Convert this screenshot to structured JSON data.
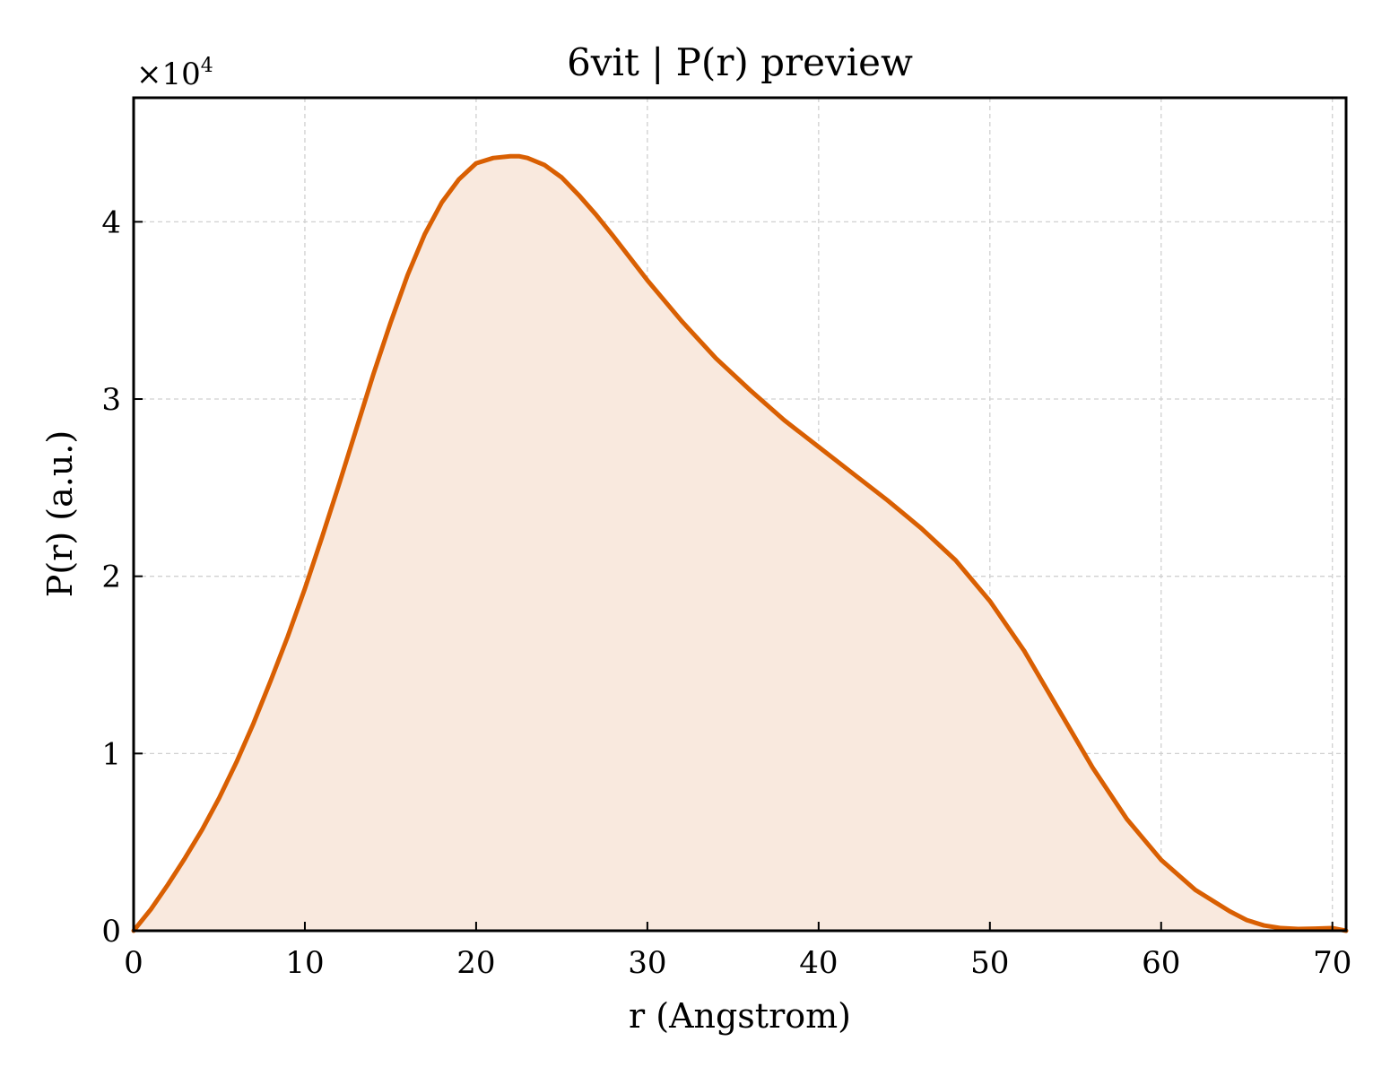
{
  "chart_data": {
    "type": "area",
    "title": "6vit | P(r) preview",
    "xlabel": "r (Angstrom)",
    "ylabel": "P(r) (a.u.)",
    "y_multiplier": "×10⁴",
    "y_exponent_base": "×10",
    "y_exponent_power": "4",
    "xlim": [
      0,
      70.8
    ],
    "ylim": [
      0,
      4.7
    ],
    "y_unit_scale": 10000,
    "x_ticks": [
      0,
      10,
      20,
      30,
      40,
      50,
      60,
      70
    ],
    "x_tick_labels": [
      "0",
      "10",
      "20",
      "30",
      "40",
      "50",
      "60",
      "70"
    ],
    "y_ticks": [
      0,
      1,
      2,
      3,
      4
    ],
    "y_tick_labels": [
      "0",
      "1",
      "2",
      "3",
      "4"
    ],
    "grid": true,
    "series": [
      {
        "color": "#d95f02",
        "fill_color": "#f9e9de",
        "x": [
          0,
          1,
          2,
          3,
          4,
          5,
          6,
          7,
          8,
          9,
          10,
          11,
          12,
          13,
          14,
          15,
          16,
          17,
          18,
          19,
          20,
          21,
          22,
          22.5,
          23,
          24,
          25,
          26,
          27,
          28,
          30,
          32,
          34,
          36,
          38,
          40,
          42,
          44,
          46,
          48,
          50,
          52,
          54,
          56,
          58,
          60,
          62,
          64,
          65,
          66,
          67,
          68,
          69,
          70,
          70.8
        ],
        "y": [
          0,
          0.12,
          0.26,
          0.41,
          0.57,
          0.75,
          0.95,
          1.17,
          1.41,
          1.66,
          1.93,
          2.22,
          2.52,
          2.83,
          3.14,
          3.43,
          3.7,
          3.93,
          4.11,
          4.24,
          4.33,
          4.36,
          4.37,
          4.37,
          4.36,
          4.32,
          4.25,
          4.15,
          4.04,
          3.92,
          3.67,
          3.44,
          3.23,
          3.05,
          2.88,
          2.73,
          2.58,
          2.43,
          2.27,
          2.09,
          1.86,
          1.58,
          1.25,
          0.92,
          0.63,
          0.4,
          0.23,
          0.11,
          0.06,
          0.03,
          0.015,
          0.01,
          0.012,
          0.015,
          0.0
        ]
      }
    ]
  }
}
